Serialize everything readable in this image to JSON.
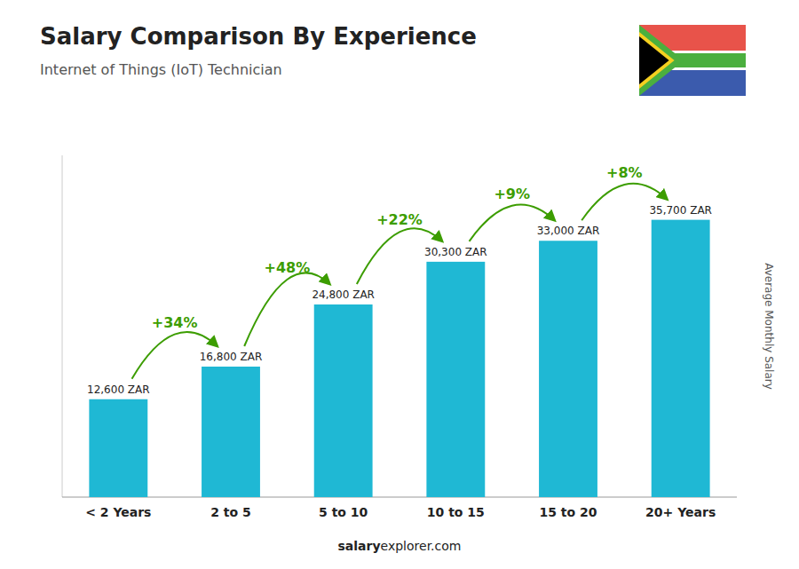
{
  "chart_data": {
    "type": "bar",
    "title": "Salary Comparison By Experience",
    "subtitle": "Internet of Things (IoT) Technician",
    "y_label": "Average Monthly Salary",
    "categories": [
      "< 2 Years",
      "2 to 5",
      "5 to 10",
      "10 to 15",
      "15 to 20",
      "20+ Years"
    ],
    "values": [
      12600,
      16800,
      24800,
      30300,
      33000,
      35700
    ],
    "value_labels": [
      "12,600 ZAR",
      "16,800 ZAR",
      "24,800 ZAR",
      "30,300 ZAR",
      "33,000 ZAR",
      "35,700 ZAR"
    ],
    "data_labels": true,
    "annotations": [
      "+34%",
      "+48%",
      "+22%",
      "+9%",
      "+8%"
    ],
    "footer": [
      "salary",
      "explorer.com"
    ],
    "color": "#1fb8d4",
    "ylim": [
      0,
      44000
    ],
    "grid": false,
    "tick_labels": "x"
  }
}
